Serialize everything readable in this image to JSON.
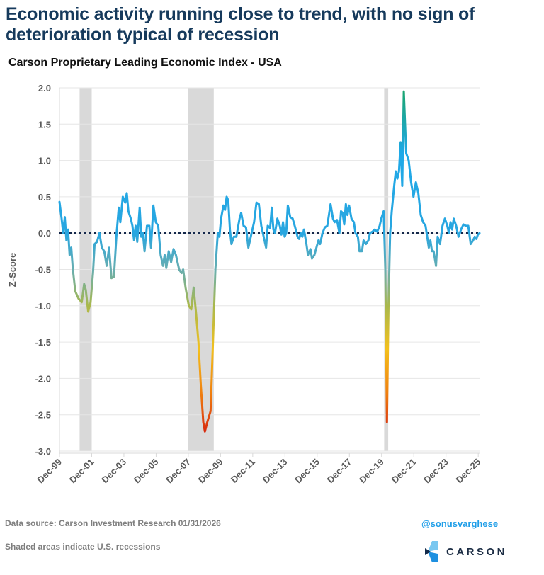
{
  "header": {
    "title": "Economic activity running close to trend, with no sign of deterioration typical of recession",
    "subtitle": "Carson Proprietary Leading Economic Index - USA"
  },
  "footer": {
    "source": "Data source: Carson Investment Research   01/31/2026",
    "note": "Shaded areas indicate U.S. recessions",
    "handle": "@sonusvarghese",
    "logo_text": "CARSON",
    "logo_icon": "carson-chevron-icon"
  },
  "colors": {
    "title": "#163a5c",
    "handle": "#1f9ee8",
    "recession_shade": "#d9d9d9",
    "zero_line": "#14284b",
    "gradient_high": "#1aa56a",
    "gradient_mid": "#1fa9e8",
    "gradient_low": "#d01010"
  },
  "chart_data": {
    "type": "line",
    "title": "Carson Proprietary Leading Economic Index - USA",
    "xlabel": "",
    "ylabel": "Z-Score",
    "ylim": [
      -3.0,
      2.0
    ],
    "xlim": [
      1999.92,
      2026.0
    ],
    "yticks": [
      "2.0",
      "1.5",
      "1.0",
      "0.5",
      "0.0",
      "-0.5",
      "-1.0",
      "-1.5",
      "-2.0",
      "-2.5",
      "-3.0"
    ],
    "ytick_values": [
      2.0,
      1.5,
      1.0,
      0.5,
      0.0,
      -0.5,
      -1.0,
      -1.5,
      -2.0,
      -2.5,
      -3.0
    ],
    "xticks": [
      "Dec-99",
      "Dec-01",
      "Dec-03",
      "Dec-05",
      "Dec-07",
      "Dec-09",
      "Dec-11",
      "Dec-13",
      "Dec-15",
      "Dec-17",
      "Dec-19",
      "Dec-21",
      "Dec-23",
      "Dec-25"
    ],
    "xtick_values": [
      1999.92,
      2001.92,
      2003.92,
      2005.92,
      2007.92,
      2009.92,
      2011.92,
      2013.92,
      2015.92,
      2017.92,
      2019.92,
      2021.92,
      2023.92,
      2025.92
    ],
    "grid": "horizontal",
    "reference_line": {
      "y": 0,
      "style": "dotted"
    },
    "recessions": [
      {
        "start": 2001.17,
        "end": 2001.92
      },
      {
        "start": 2007.92,
        "end": 2009.5
      },
      {
        "start": 2020.08,
        "end": 2020.33
      }
    ],
    "series": [
      {
        "name": "Carson Proprietary Leading Economic Index",
        "x": [
          1999.92,
          2000.05,
          2000.15,
          2000.25,
          2000.35,
          2000.45,
          2000.55,
          2000.65,
          2000.75,
          2000.9,
          2001.1,
          2001.3,
          2001.45,
          2001.55,
          2001.7,
          2001.85,
          2002.0,
          2002.1,
          2002.25,
          2002.4,
          2002.55,
          2002.7,
          2002.85,
          2003.0,
          2003.15,
          2003.3,
          2003.45,
          2003.6,
          2003.7,
          2003.85,
          2004.0,
          2004.1,
          2004.2,
          2004.35,
          2004.45,
          2004.55,
          2004.65,
          2004.75,
          2004.9,
          2005.0,
          2005.1,
          2005.2,
          2005.35,
          2005.5,
          2005.6,
          2005.75,
          2005.9,
          2006.05,
          2006.2,
          2006.35,
          2006.45,
          2006.55,
          2006.7,
          2006.85,
          2007.0,
          2007.15,
          2007.35,
          2007.5,
          2007.6,
          2007.75,
          2007.95,
          2008.1,
          2008.25,
          2008.4,
          2008.55,
          2008.7,
          2008.85,
          2008.95,
          2009.1,
          2009.3,
          2009.45,
          2009.6,
          2009.75,
          2009.85,
          2009.95,
          2010.1,
          2010.2,
          2010.3,
          2010.4,
          2010.5,
          2010.6,
          2010.75,
          2010.9,
          2011.1,
          2011.2,
          2011.35,
          2011.5,
          2011.65,
          2011.8,
          2012.0,
          2012.15,
          2012.3,
          2012.45,
          2012.6,
          2012.75,
          2012.85,
          2013.0,
          2013.1,
          2013.2,
          2013.3,
          2013.45,
          2013.6,
          2013.7,
          2013.8,
          2013.9,
          2014.0,
          2014.1,
          2014.25,
          2014.4,
          2014.55,
          2014.7,
          2014.8,
          2014.9,
          2015.0,
          2015.1,
          2015.25,
          2015.35,
          2015.5,
          2015.6,
          2015.75,
          2015.9,
          2016.0,
          2016.1,
          2016.25,
          2016.4,
          2016.55,
          2016.75,
          2016.9,
          2017.0,
          2017.15,
          2017.3,
          2017.4,
          2017.5,
          2017.6,
          2017.7,
          2017.8,
          2017.9,
          2018.05,
          2018.2,
          2018.3,
          2018.45,
          2018.55,
          2018.7,
          2018.8,
          2018.95,
          2019.1,
          2019.2,
          2019.35,
          2019.5,
          2019.65,
          2019.8,
          2019.9,
          2020.05,
          2020.15,
          2020.25,
          2020.35,
          2020.45,
          2020.55,
          2020.7,
          2020.8,
          2020.9,
          2021.0,
          2021.1,
          2021.2,
          2021.3,
          2021.45,
          2021.6,
          2021.75,
          2021.9,
          2022.05,
          2022.2,
          2022.35,
          2022.5,
          2022.65,
          2022.75,
          2022.85,
          2022.95,
          2023.05,
          2023.15,
          2023.3,
          2023.4,
          2023.55,
          2023.7,
          2023.85,
          2024.0,
          2024.1,
          2024.2,
          2024.3,
          2024.4,
          2024.55,
          2024.7,
          2024.85,
          2025.0,
          2025.15,
          2025.3,
          2025.45,
          2025.6,
          2025.7,
          2025.8,
          2025.9,
          2026.0
        ],
        "values": [
          0.43,
          0.2,
          0.0,
          0.22,
          -0.1,
          0.05,
          -0.3,
          -0.2,
          -0.5,
          -0.8,
          -0.9,
          -0.95,
          -0.7,
          -0.78,
          -1.08,
          -0.95,
          -0.55,
          -0.15,
          -0.12,
          0.0,
          -0.2,
          -0.25,
          -0.45,
          -0.2,
          -0.62,
          -0.6,
          -0.05,
          0.35,
          0.15,
          0.5,
          0.42,
          0.55,
          0.3,
          0.2,
          0.1,
          -0.1,
          0.1,
          -0.12,
          0.35,
          -0.05,
          0.0,
          -0.25,
          0.1,
          0.1,
          -0.2,
          0.38,
          0.15,
          0.1,
          -0.3,
          -0.45,
          -0.3,
          -0.48,
          -0.25,
          -0.4,
          -0.22,
          -0.3,
          -0.5,
          -0.55,
          -0.5,
          -0.75,
          -1.0,
          -1.05,
          -0.75,
          -1.1,
          -1.5,
          -2.1,
          -2.6,
          -2.73,
          -2.6,
          -2.45,
          -1.5,
          -0.5,
          0.0,
          -0.05,
          0.2,
          0.38,
          0.32,
          0.5,
          0.45,
          0.05,
          -0.15,
          -0.05,
          -0.05,
          0.2,
          0.28,
          0.1,
          0.08,
          -0.2,
          -0.05,
          0.15,
          0.42,
          0.4,
          0.1,
          -0.05,
          -0.2,
          0.1,
          0.07,
          0.35,
          0.05,
          0.0,
          0.2,
          0.1,
          -0.02,
          0.15,
          -0.05,
          0.0,
          0.38,
          0.22,
          0.2,
          0.08,
          -0.05,
          -0.08,
          0.0,
          -0.05,
          0.05,
          -0.15,
          -0.3,
          -0.22,
          -0.35,
          -0.3,
          -0.18,
          -0.1,
          -0.15,
          0.0,
          0.08,
          0.1,
          0.4,
          0.2,
          0.15,
          0.18,
          0.0,
          0.3,
          0.28,
          0.12,
          0.4,
          0.25,
          0.38,
          0.2,
          0.15,
          0.0,
          -0.05,
          -0.25,
          -0.25,
          -0.1,
          -0.15,
          -0.1,
          0.0,
          0.02,
          0.05,
          0.02,
          0.1,
          0.2,
          0.3,
          -0.5,
          -2.6,
          -1.0,
          0.0,
          0.3,
          0.65,
          0.85,
          0.75,
          0.85,
          1.25,
          0.65,
          1.95,
          1.1,
          1.0,
          0.7,
          0.5,
          0.7,
          0.55,
          0.25,
          0.15,
          0.1,
          -0.05,
          -0.2,
          -0.1,
          -0.25,
          -0.25,
          -0.45,
          -0.05,
          -0.15,
          0.1,
          0.2,
          0.1,
          0.0,
          0.15,
          0.05,
          0.2,
          0.1,
          -0.05,
          0.05,
          0.12,
          0.1,
          0.1,
          -0.15,
          -0.1,
          -0.05,
          -0.08,
          -0.02,
          0.0
        ]
      }
    ]
  }
}
